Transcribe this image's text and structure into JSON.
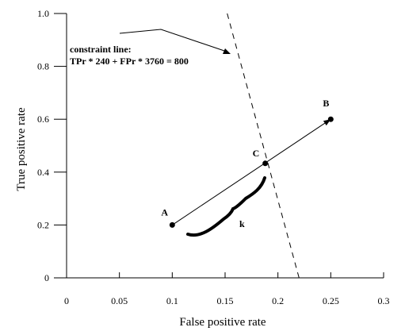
{
  "chart_data": {
    "type": "line",
    "title": "",
    "xlabel": "False positive rate",
    "ylabel": "True positive rate",
    "xlim": [
      0,
      0.3
    ],
    "ylim": [
      0,
      1.0
    ],
    "x_ticks": [
      0,
      0.05,
      0.1,
      0.15,
      0.2,
      0.25,
      0.3
    ],
    "x_tick_labels": [
      "0",
      "0.05",
      "0.1",
      "0.15",
      "0.2",
      "0.25",
      "0.3"
    ],
    "y_ticks": [
      0,
      0.2,
      0.4,
      0.6,
      0.8,
      1.0
    ],
    "y_tick_labels": [
      "0",
      "0.2",
      "0.4",
      "0.6",
      "0.8",
      "1.0"
    ],
    "grid": false,
    "points": [
      {
        "label": "A",
        "x": 0.1,
        "y": 0.2
      },
      {
        "label": "B",
        "x": 0.25,
        "y": 0.6
      },
      {
        "label": "C",
        "x": 0.188,
        "y": 0.433
      }
    ],
    "segments": [
      {
        "kind": "arrow",
        "from": [
          0.1,
          0.2
        ],
        "to": [
          0.25,
          0.6
        ],
        "style": "solid"
      },
      {
        "kind": "constraint",
        "from": [
          0.152,
          1.0
        ],
        "to": [
          0.22,
          0.0
        ],
        "style": "dashed"
      }
    ],
    "annotations": {
      "constraint_title": "constraint line:",
      "constraint_equation": "TPr * 240 + FPr * 3760 = 800",
      "brace_label": "k"
    }
  }
}
